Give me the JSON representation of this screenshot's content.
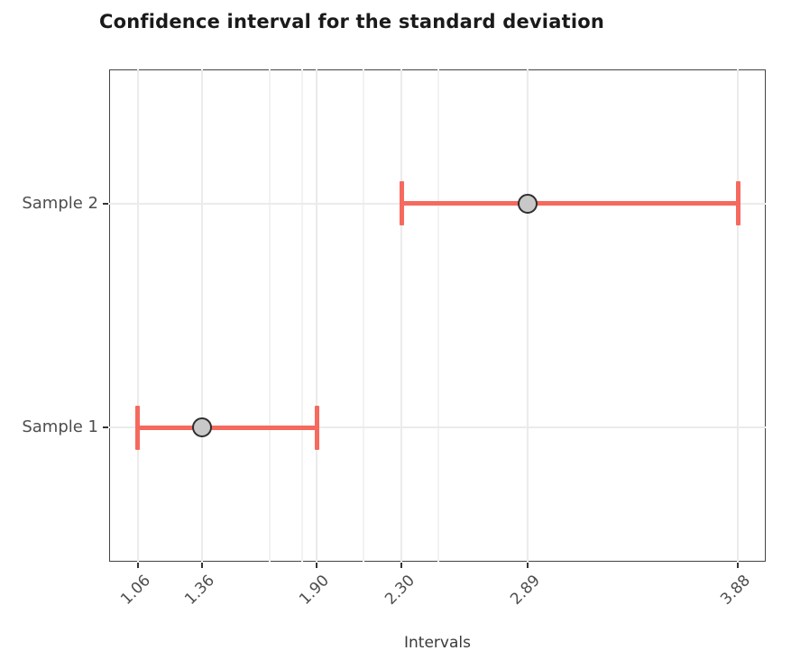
{
  "title": "Confidence interval for the standard deviation",
  "chart_data": {
    "type": "errorbar",
    "orientation": "horizontal",
    "title": "Confidence interval for the standard deviation",
    "xlabel": "Intervals",
    "ylabel": "",
    "categories": [
      "Sample 1",
      "Sample 2"
    ],
    "series": [
      {
        "name": "sd-confidence-intervals",
        "points": [
          {
            "category": "Sample 1",
            "estimate": 1.36,
            "lower": 1.06,
            "upper": 1.9
          },
          {
            "category": "Sample 2",
            "estimate": 2.89,
            "lower": 2.3,
            "upper": 3.88
          }
        ]
      }
    ],
    "x_ticks": [
      1.06,
      1.36,
      1.9,
      2.3,
      2.89,
      3.88
    ],
    "x_tick_labels": [
      "1.06",
      "1.36",
      "1.90",
      "2.30",
      "2.89",
      "3.88"
    ],
    "minor_gridlines_x": [
      1.68,
      1.83,
      2.12,
      2.47
    ],
    "xlim": [
      0.925,
      4.01
    ],
    "grid": true,
    "legend": false,
    "colors": {
      "errorbar": "#f5695e",
      "marker_fill": "#c8c8c8",
      "marker_stroke": "#2e2e2e",
      "gridline": "#ebebeb",
      "minor_gridline": "#f2f2f2",
      "panel_border": "#444444",
      "tick": "#333333",
      "title_text": "#1a1a1a",
      "axis_text": "#4d4d4d"
    }
  }
}
